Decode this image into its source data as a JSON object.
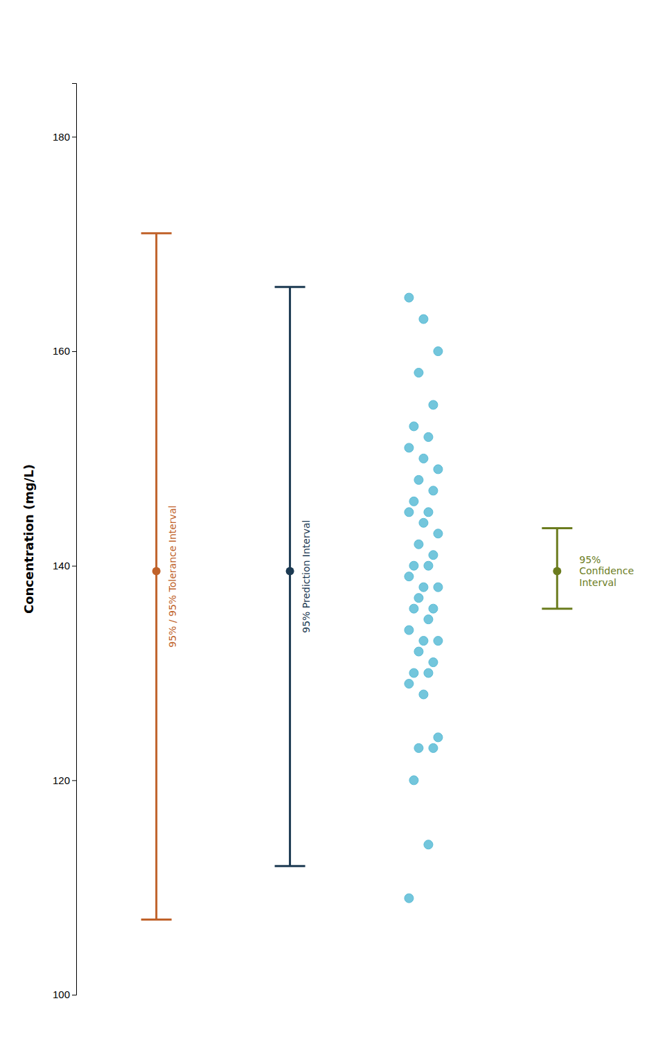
{
  "chart_data": {
    "type": "interval",
    "ylabel": "Concentration (mg/L)",
    "ylim": [
      100,
      185
    ],
    "yticks": [
      100,
      120,
      140,
      160,
      180
    ],
    "tick_labels": "y",
    "series": [
      {
        "name": "95% / 95% Tolerance Interval",
        "type": "interval",
        "color": "#c0622a",
        "values": [
          139.5
        ],
        "lower": [
          107.0
        ],
        "upper": [
          171.0
        ]
      },
      {
        "name": "95% Prediction Interval",
        "type": "interval",
        "color": "#1c3a52",
        "values": [
          139.5
        ],
        "lower": [
          112.0
        ],
        "upper": [
          166.0
        ]
      },
      {
        "type": "scatter",
        "color": "#5bbcd6",
        "values": [
          165,
          163,
          160,
          158,
          155,
          153,
          152,
          151,
          150,
          149,
          148,
          147,
          146,
          145,
          145,
          144,
          143,
          142,
          141,
          140,
          140,
          139,
          138,
          138,
          137,
          136,
          136,
          135,
          134,
          133,
          133,
          132,
          131,
          130,
          130,
          129,
          128,
          124,
          123,
          123,
          120,
          114,
          109
        ]
      },
      {
        "name": "95%\nConfidence\nInterval",
        "type": "interval",
        "color": "#6b7c1e",
        "values": [
          139.5
        ],
        "lower": [
          136.0
        ],
        "upper": [
          143.5
        ]
      }
    ]
  }
}
